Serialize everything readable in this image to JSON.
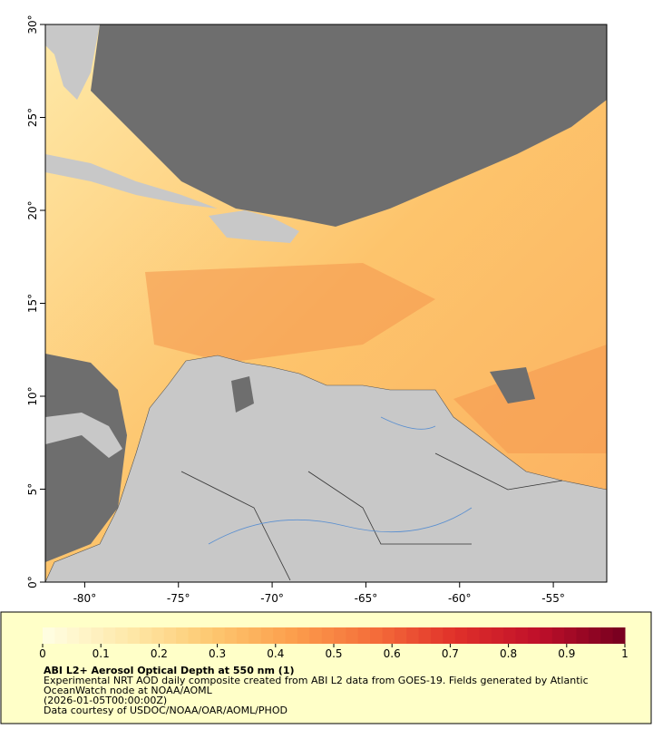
{
  "map": {
    "lon_ticks": [
      {
        "value": -80,
        "label": "-80°"
      },
      {
        "value": -75,
        "label": "-75°"
      },
      {
        "value": -70,
        "label": "-70°"
      },
      {
        "value": -65,
        "label": "-65°"
      },
      {
        "value": -60,
        "label": "-60°"
      },
      {
        "value": -55,
        "label": "-55°"
      }
    ],
    "lat_ticks": [
      {
        "value": 0,
        "label": "0°"
      },
      {
        "value": 5,
        "label": "5°"
      },
      {
        "value": 10,
        "label": "10°"
      },
      {
        "value": 15,
        "label": "15°"
      },
      {
        "value": 20,
        "label": "20°"
      },
      {
        "value": 25,
        "label": "25°"
      },
      {
        "value": 30,
        "label": "30°"
      }
    ],
    "xlim": [
      -82.1,
      -52.15
    ],
    "ylim": [
      0,
      30
    ]
  },
  "colorbar": {
    "range": [
      0,
      1
    ],
    "ticks": [
      0,
      0.1,
      0.2,
      0.3,
      0.4,
      0.5,
      0.6,
      0.7,
      0.8,
      0.9,
      1
    ],
    "colors": [
      "#fffde0",
      "#fee8a8",
      "#fdc870",
      "#fc9e4c",
      "#f46d3a",
      "#e0302a",
      "#c0102a",
      "#7a0020"
    ]
  },
  "caption": {
    "title": "ABI L2+ Aerosol Optical Depth at 550 nm (1)",
    "line1": "Experimental NRT AOD daily composite created from ABI L2 data from GOES-19. Fields generated by Atlantic",
    "line2": "OceanWatch node at NOAA/AOML",
    "line3": "(2026-01-05T00:00:00Z)",
    "line4": "Data courtesy of USDOC/NOAA/OAR/AOML/PHOD"
  }
}
